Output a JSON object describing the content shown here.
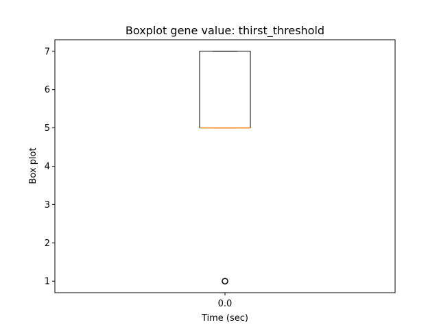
{
  "chart_data": {
    "type": "boxplot",
    "title": "Boxplot gene value: thirst_threshold",
    "xlabel": "Time (sec)",
    "ylabel": "Box plot",
    "categories": [
      "0.0"
    ],
    "boxes": [
      {
        "category": "0.0",
        "whisker_low": 5,
        "q1": 5,
        "median": 5,
        "q3": 7,
        "whisker_high": 7,
        "outliers": [
          1
        ]
      }
    ],
    "y_ticks": [
      1,
      2,
      3,
      4,
      5,
      6,
      7
    ],
    "ylim": [
      0.7,
      7.3
    ],
    "grid": false,
    "colors": {
      "box": "#000000",
      "median": "#ff7f0e",
      "outlier": "#000000",
      "background": "#ffffff"
    }
  }
}
